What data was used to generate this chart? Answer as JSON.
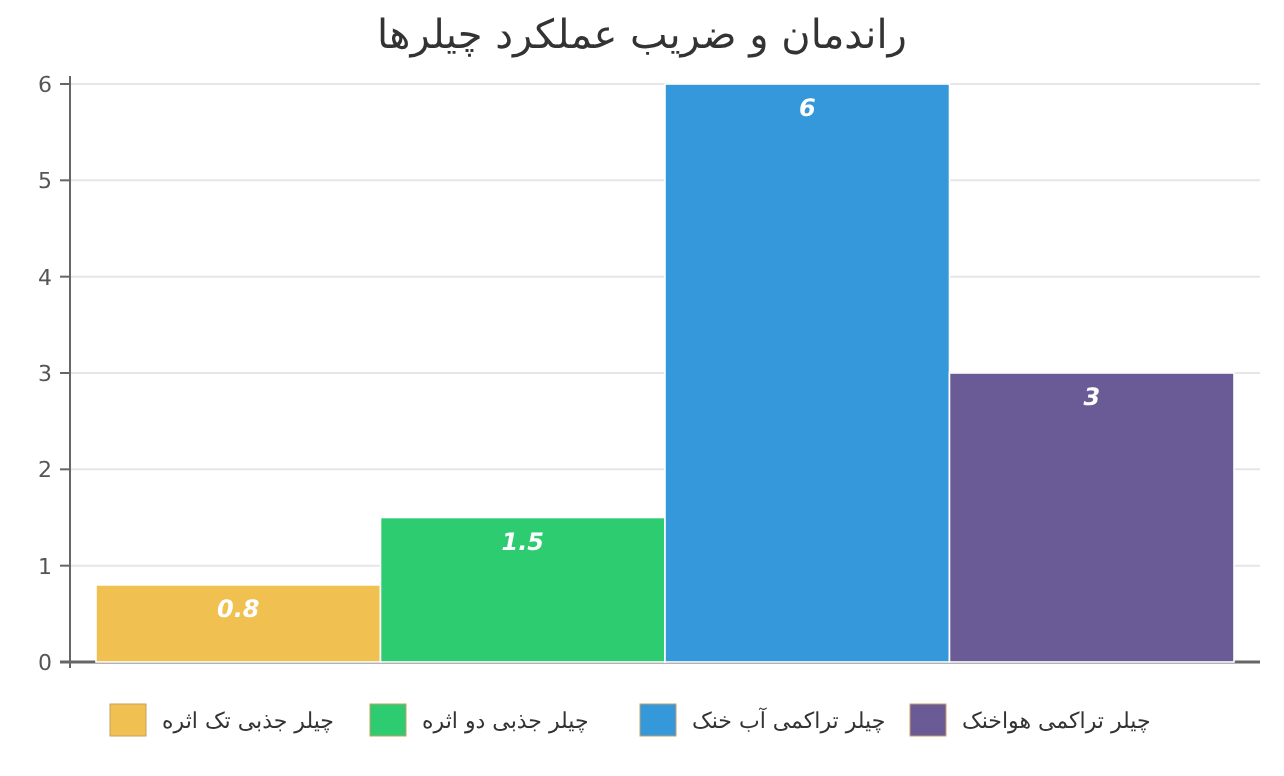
{
  "chart_data": {
    "type": "bar",
    "title": "راندمان و ضریب عملکرد چیلرها",
    "categories": [
      null
    ],
    "series": [
      {
        "name": "چیلر جذبی تک اثره",
        "color": "#f0c050",
        "values": [
          0.8
        ]
      },
      {
        "name": "چیلر جذبی دو اثره",
        "color": "#2ecc71",
        "values": [
          1.5
        ]
      },
      {
        "name": "چیلر تراکمی آب خنک",
        "color": "#3498db",
        "values": [
          6
        ]
      },
      {
        "name": "چیلر تراکمی هواخنک",
        "color": "#6a5a96",
        "values": [
          3
        ]
      }
    ],
    "ylim": [
      0,
      6
    ],
    "yticks": [
      0,
      1,
      2,
      3,
      4,
      5,
      6
    ],
    "grid": "y",
    "legend": "bottom",
    "data_labels": true
  }
}
